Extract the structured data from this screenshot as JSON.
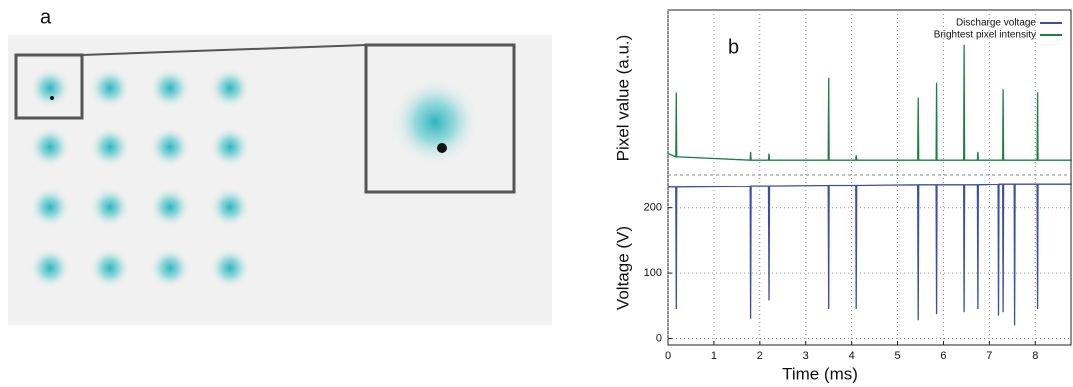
{
  "image_panel": {
    "label": "a"
  },
  "chart_data": {
    "type": "line",
    "annotation": "b",
    "xlabel": "Time (ms)",
    "ylabel": "Voltage (V)",
    "y2label": "Pixel value (a.u.)",
    "xlim": [
      0,
      8.8
    ],
    "xticks": [
      0,
      1,
      2,
      3,
      4,
      5,
      6,
      7,
      8
    ],
    "ylim": [
      -10,
      250
    ],
    "yticks": [
      0,
      100,
      200
    ],
    "y2lim": [
      0,
      100
    ],
    "grid": true,
    "legend": "upper right",
    "series": [
      {
        "name": "Discharge voltage",
        "color": "#3a4fa0",
        "x": [
          0,
          0.17,
          0.18,
          0.19,
          1.79,
          1.8,
          1.81,
          2.19,
          2.2,
          2.21,
          3.49,
          3.5,
          3.51,
          4.09,
          4.1,
          4.11,
          5.44,
          5.45,
          5.46,
          5.84,
          5.85,
          5.86,
          6.44,
          6.45,
          6.46,
          6.74,
          6.75,
          6.76,
          7.19,
          7.2,
          7.21,
          7.29,
          7.3,
          7.31,
          7.54,
          7.55,
          7.56,
          8.04,
          8.05,
          8.06,
          8.8
        ],
        "values": [
          232,
          232,
          45,
          232,
          233,
          30,
          233,
          233,
          58,
          233,
          234,
          45,
          234,
          234,
          45,
          234,
          235,
          28,
          235,
          235,
          37,
          235,
          235,
          40,
          235,
          235,
          45,
          235,
          236,
          35,
          236,
          236,
          40,
          236,
          236,
          20,
          236,
          236,
          45,
          236,
          236
        ]
      },
      {
        "name": "Brightest pixel intensity",
        "color": "#1a8040",
        "axis": "y2",
        "x": [
          0,
          0.17,
          0.18,
          0.19,
          1.79,
          1.8,
          1.81,
          2.19,
          2.2,
          2.21,
          3.49,
          3.5,
          3.51,
          4.09,
          4.1,
          4.11,
          5.44,
          5.45,
          5.46,
          5.84,
          5.85,
          5.86,
          6.44,
          6.45,
          6.46,
          6.74,
          6.75,
          6.76,
          7.29,
          7.3,
          7.31,
          8.04,
          8.05,
          8.06,
          8.8
        ],
        "values": [
          13,
          11,
          50,
          11,
          9,
          14,
          9,
          9,
          13,
          9,
          9,
          59,
          9,
          9,
          12,
          9,
          9,
          47,
          9,
          9,
          56,
          9,
          9,
          79,
          9,
          9,
          14,
          9,
          9,
          52,
          9,
          9,
          50,
          9,
          9
        ]
      }
    ]
  }
}
